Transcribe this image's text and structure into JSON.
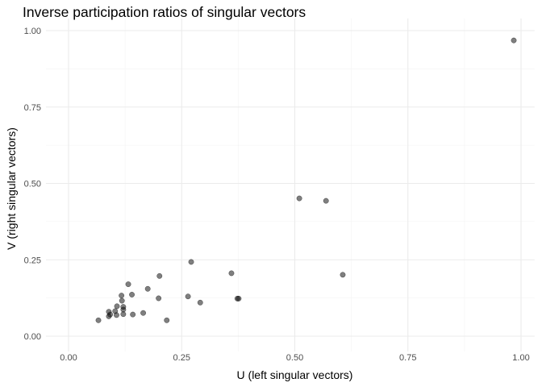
{
  "chart_data": {
    "type": "scatter",
    "title": "Inverse participation ratios of singular vectors",
    "xlabel": "U (left singular vectors)",
    "ylabel": "V (right singular vectors)",
    "xlim": [
      -0.05,
      1.03
    ],
    "ylim": [
      -0.05,
      1.04
    ],
    "xticks": [
      0,
      0.25,
      0.5,
      0.75,
      1
    ],
    "xtick_labels": [
      "0.00",
      "0.25",
      "0.50",
      "0.75",
      "1.00"
    ],
    "yticks": [
      0,
      0.25,
      0.5,
      0.75,
      1
    ],
    "ytick_labels": [
      "0.00",
      "0.25",
      "0.50",
      "0.75",
      "1.00"
    ],
    "grid": true,
    "point_color": "#000000",
    "point_opacity": 0.5,
    "points": [
      [
        0.066,
        0.052
      ],
      [
        0.089,
        0.08
      ],
      [
        0.089,
        0.065
      ],
      [
        0.092,
        0.071
      ],
      [
        0.103,
        0.082
      ],
      [
        0.106,
        0.069
      ],
      [
        0.107,
        0.098
      ],
      [
        0.117,
        0.133
      ],
      [
        0.118,
        0.116
      ],
      [
        0.121,
        0.096
      ],
      [
        0.121,
        0.087
      ],
      [
        0.121,
        0.072
      ],
      [
        0.132,
        0.17
      ],
      [
        0.14,
        0.136
      ],
      [
        0.142,
        0.071
      ],
      [
        0.165,
        0.076
      ],
      [
        0.175,
        0.155
      ],
      [
        0.201,
        0.197
      ],
      [
        0.199,
        0.124
      ],
      [
        0.217,
        0.052
      ],
      [
        0.271,
        0.243
      ],
      [
        0.264,
        0.13
      ],
      [
        0.291,
        0.11
      ],
      [
        0.36,
        0.206
      ],
      [
        0.373,
        0.123
      ],
      [
        0.376,
        0.123
      ],
      [
        0.51,
        0.451
      ],
      [
        0.569,
        0.443
      ],
      [
        0.606,
        0.201
      ],
      [
        0.984,
        0.968
      ]
    ]
  }
}
